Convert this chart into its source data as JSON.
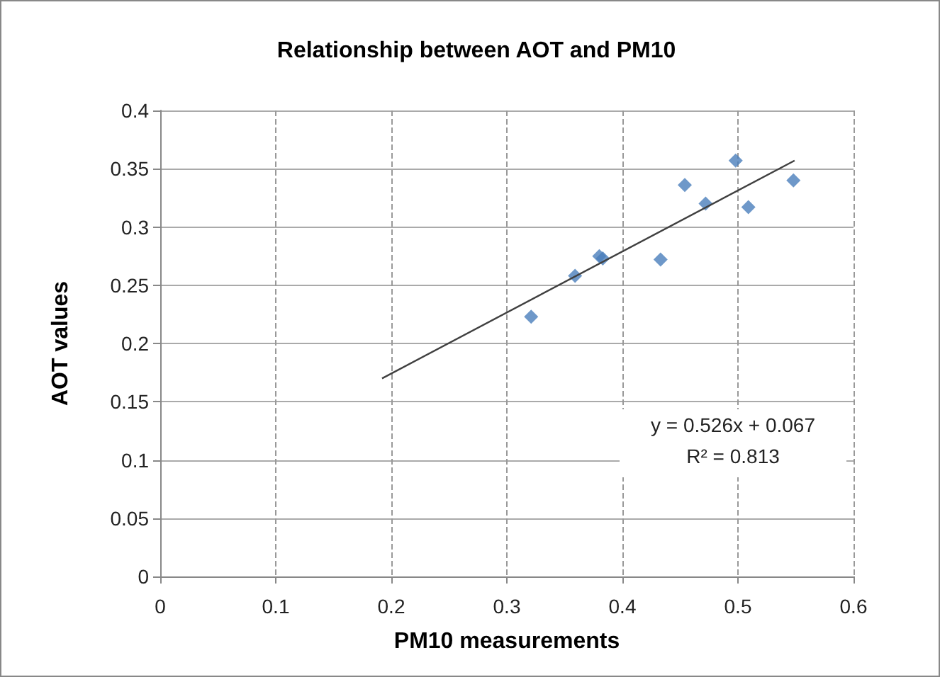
{
  "chart_data": {
    "type": "scatter",
    "title": "Relationship between AOT and PM10",
    "xlabel": "PM10 measurements",
    "ylabel": "AOT values",
    "series": [
      {
        "color": "#4a7ebb",
        "marker": "diamond",
        "x": [
          0.321,
          0.359,
          0.38,
          0.383,
          0.433,
          0.454,
          0.472,
          0.498,
          0.509,
          0.548
        ],
        "values": [
          0.223,
          0.258,
          0.275,
          0.273,
          0.272,
          0.336,
          0.32,
          0.357,
          0.317,
          0.34
        ]
      },
      {
        "type": "line",
        "color": "#404040",
        "marker": "none",
        "x": [
          0.192,
          0.549
        ],
        "values": [
          0.17,
          0.357
        ]
      }
    ],
    "xlim": [
      0,
      0.6
    ],
    "xticks": [
      0,
      0.1,
      0.2,
      0.3,
      0.4,
      0.5,
      0.6
    ],
    "ylim": [
      0,
      0.4
    ],
    "yticks": [
      0,
      0.05,
      0.1,
      0.15,
      0.2,
      0.25,
      0.3,
      0.35,
      0.4
    ],
    "grid": true,
    "annotations": [
      "y = 0.526x + 0.067",
      "R² = 0.813"
    ]
  }
}
